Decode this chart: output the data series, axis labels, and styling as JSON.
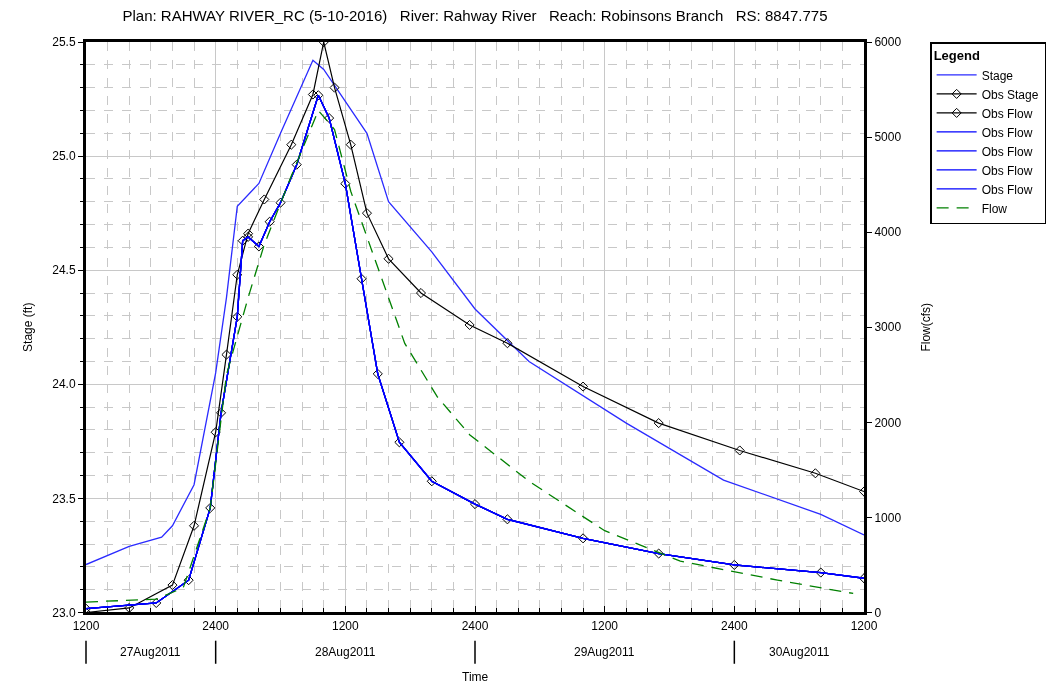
{
  "chart_data": {
    "type": "line",
    "title": "Plan: RAHWAY RIVER_RC (5-10-2016)   River: Rahway River   Reach: Robinsons Branch   RS: 8847.775",
    "xlabel": "Time",
    "ylabel": "Stage (ft)",
    "y2label": "Flow(cfs)",
    "legend_title": "Legend",
    "legend": "right",
    "grid": true,
    "xlim": [
      "2011-08-27T12:00",
      "2011-08-30T12:00"
    ],
    "xticks": [
      {
        "value": "2011-08-27T12:00",
        "label": "1200"
      },
      {
        "value": "2011-08-28T00:00",
        "label": "2400"
      },
      {
        "value": "2011-08-28T12:00",
        "label": "1200"
      },
      {
        "value": "2011-08-29T00:00",
        "label": "2400"
      },
      {
        "value": "2011-08-29T12:00",
        "label": "1200"
      },
      {
        "value": "2011-08-30T00:00",
        "label": "2400"
      },
      {
        "value": "2011-08-30T12:00",
        "label": "1200"
      }
    ],
    "x2lim": [
      "2011-08-27T12:00",
      "2011-08-30T12:00"
    ],
    "x2ticks": [
      {
        "value": "2011-08-27T12:00",
        "label": null
      },
      {
        "value": "2011-08-27T18:00",
        "label": "27Aug2011"
      },
      {
        "value": "2011-08-28T00:00",
        "label": null
      },
      {
        "value": "2011-08-28T12:00",
        "label": "28Aug2011"
      },
      {
        "value": "2011-08-29T00:00",
        "label": null
      },
      {
        "value": "2011-08-29T12:00",
        "label": "29Aug2011"
      },
      {
        "value": "2011-08-30T00:00",
        "label": null
      },
      {
        "value": "2011-08-30T06:00",
        "label": "30Aug2011"
      }
    ],
    "ylim": [
      23,
      25.5
    ],
    "yticks": [
      {
        "value": 23,
        "label": "23.0"
      },
      {
        "value": 23.5,
        "label": "23.5"
      },
      {
        "value": 24,
        "label": "24.0"
      },
      {
        "value": 24.5,
        "label": "24.5"
      },
      {
        "value": 25,
        "label": "25.0"
      },
      {
        "value": 25.5,
        "label": "25.5"
      }
    ],
    "y2lim": [
      0,
      6000
    ],
    "y2ticks": [
      0,
      1000,
      2000,
      3000,
      4000,
      5000,
      6000
    ],
    "series": [
      {
        "name": "Stage",
        "color": "#2b2bff",
        "marker": "none",
        "line_style": "solid",
        "x": [
          "2011-08-27T12:00",
          "2011-08-27T16:00",
          "2011-08-27T19:00",
          "2011-08-27T20:00",
          "2011-08-27T22:00",
          "2011-08-28T00:00",
          "2011-08-28T01:00",
          "2011-08-28T02:00",
          "2011-08-28T04:00",
          "2011-08-28T06:00",
          "2011-08-28T09:00",
          "2011-08-28T10:00",
          "2011-08-28T14:00",
          "2011-08-28T16:00",
          "2011-08-28T20:00",
          "2011-08-29T00:00",
          "2011-08-29T05:00",
          "2011-08-29T14:00",
          "2011-08-29T23:00",
          "2011-08-30T08:00",
          "2011-08-30T12:00"
        ],
        "values": [
          23.21,
          23.29,
          23.33,
          23.38,
          23.56,
          24.05,
          24.38,
          24.78,
          24.88,
          25.1,
          25.42,
          25.38,
          25.1,
          24.8,
          24.58,
          24.33,
          24.1,
          23.83,
          23.58,
          23.43,
          23.34
        ]
      },
      {
        "name": "Obs Stage",
        "color": "#000000",
        "marker": "diamond",
        "line_style": "solid",
        "x": [
          "2011-08-27T12:00",
          "2011-08-27T16:00",
          "2011-08-27T20:00",
          "2011-08-27T22:00",
          "2011-08-28T00:00",
          "2011-08-28T01:00",
          "2011-08-28T02:00",
          "2011-08-28T03:00",
          "2011-08-28T04:30",
          "2011-08-28T07:00",
          "2011-08-28T09:00",
          "2011-08-28T10:00",
          "2011-08-28T11:00",
          "2011-08-28T12:30",
          "2011-08-28T14:00",
          "2011-08-28T16:00",
          "2011-08-28T19:00",
          "2011-08-28T23:30",
          "2011-08-29T03:00",
          "2011-08-29T10:00",
          "2011-08-29T17:00",
          "2011-08-30T00:30",
          "2011-08-30T07:30",
          "2011-08-30T12:00"
        ],
        "values": [
          23.0,
          23.02,
          23.12,
          23.38,
          23.79,
          24.13,
          24.48,
          24.66,
          24.81,
          25.05,
          25.27,
          25.5,
          25.3,
          25.05,
          24.75,
          24.55,
          24.4,
          24.26,
          24.18,
          23.99,
          23.83,
          23.71,
          23.61,
          23.53
        ]
      },
      {
        "name": "Obs Flow",
        "color": "#000000",
        "marker": "diamond",
        "line_style": "solid",
        "axis": "y2",
        "x": [
          "2011-08-27T12:00",
          "2011-08-27T18:30",
          "2011-08-27T21:30",
          "2011-08-27T23:30",
          "2011-08-28T00:30",
          "2011-08-28T02:00",
          "2011-08-28T02:30",
          "2011-08-28T03:00",
          "2011-08-28T04:00",
          "2011-08-28T05:00",
          "2011-08-28T06:00",
          "2011-08-28T07:30",
          "2011-08-28T09:30",
          "2011-08-28T10:30",
          "2011-08-28T12:00",
          "2011-08-28T13:30",
          "2011-08-28T15:00",
          "2011-08-28T17:00",
          "2011-08-28T20:00",
          "2011-08-29T00:00",
          "2011-08-29T03:00",
          "2011-08-29T10:00",
          "2011-08-29T17:00",
          "2011-08-30T00:00",
          "2011-08-30T08:00",
          "2011-08-30T12:00"
        ],
        "values": [
          40,
          100,
          340,
          1100,
          2100,
          3110,
          3910,
          3950,
          3850,
          4110,
          4310,
          4710,
          5440,
          5200,
          4510,
          3510,
          2510,
          1790,
          1380,
          1140,
          980,
          780,
          620,
          500,
          420,
          360
        ]
      },
      {
        "name": "Obs Flow",
        "color": "#0000ff",
        "marker": "none",
        "line_style": "solid",
        "axis": "y2",
        "x": [
          "2011-08-27T12:00",
          "2011-08-27T18:30",
          "2011-08-27T21:30",
          "2011-08-27T23:30",
          "2011-08-28T00:30",
          "2011-08-28T02:00",
          "2011-08-28T02:30",
          "2011-08-28T03:00",
          "2011-08-28T04:00",
          "2011-08-28T05:00",
          "2011-08-28T06:00",
          "2011-08-28T07:30",
          "2011-08-28T09:30",
          "2011-08-28T10:30",
          "2011-08-28T12:00",
          "2011-08-28T13:30",
          "2011-08-28T15:00",
          "2011-08-28T17:00",
          "2011-08-28T20:00",
          "2011-08-29T00:00",
          "2011-08-29T03:00",
          "2011-08-29T10:00",
          "2011-08-29T17:00",
          "2011-08-30T00:00",
          "2011-08-30T08:00",
          "2011-08-30T12:00"
        ],
        "values": [
          40,
          100,
          340,
          1100,
          2100,
          3110,
          3910,
          3950,
          3850,
          4110,
          4310,
          4710,
          5440,
          5200,
          4510,
          3510,
          2510,
          1790,
          1380,
          1140,
          980,
          780,
          620,
          500,
          420,
          360
        ]
      },
      {
        "name": "Obs Flow",
        "color": "#0000ff",
        "marker": "none",
        "line_style": "solid",
        "axis": "y2",
        "x": [
          "2011-08-27T12:00",
          "2011-08-27T18:30",
          "2011-08-27T21:30",
          "2011-08-27T23:30",
          "2011-08-28T00:30",
          "2011-08-28T02:00",
          "2011-08-28T02:30",
          "2011-08-28T03:00",
          "2011-08-28T04:00",
          "2011-08-28T05:00",
          "2011-08-28T06:00",
          "2011-08-28T07:30",
          "2011-08-28T09:30",
          "2011-08-28T10:30",
          "2011-08-28T12:00",
          "2011-08-28T13:30",
          "2011-08-28T15:00",
          "2011-08-28T17:00",
          "2011-08-28T20:00",
          "2011-08-29T00:00",
          "2011-08-29T03:00",
          "2011-08-29T10:00",
          "2011-08-29T17:00",
          "2011-08-30T00:00",
          "2011-08-30T08:00",
          "2011-08-30T12:00"
        ],
        "values": [
          40,
          100,
          340,
          1100,
          2100,
          3110,
          3910,
          3950,
          3850,
          4110,
          4310,
          4710,
          5440,
          5200,
          4510,
          3510,
          2510,
          1790,
          1380,
          1140,
          980,
          780,
          620,
          500,
          420,
          360
        ]
      },
      {
        "name": "Obs Flow",
        "color": "#0000ff",
        "marker": "none",
        "line_style": "solid",
        "axis": "y2",
        "x": [
          "2011-08-27T12:00",
          "2011-08-27T18:30",
          "2011-08-27T21:30",
          "2011-08-27T23:30",
          "2011-08-28T00:30",
          "2011-08-28T02:00",
          "2011-08-28T02:30",
          "2011-08-28T03:00",
          "2011-08-28T04:00",
          "2011-08-28T05:00",
          "2011-08-28T06:00",
          "2011-08-28T07:30",
          "2011-08-28T09:30",
          "2011-08-28T10:30",
          "2011-08-28T12:00",
          "2011-08-28T13:30",
          "2011-08-28T15:00",
          "2011-08-28T17:00",
          "2011-08-28T20:00",
          "2011-08-29T00:00",
          "2011-08-29T03:00",
          "2011-08-29T10:00",
          "2011-08-29T17:00",
          "2011-08-30T00:00",
          "2011-08-30T08:00",
          "2011-08-30T12:00"
        ],
        "values": [
          40,
          100,
          340,
          1100,
          2100,
          3110,
          3910,
          3950,
          3850,
          4110,
          4310,
          4710,
          5440,
          5200,
          4510,
          3510,
          2510,
          1790,
          1380,
          1140,
          980,
          780,
          620,
          500,
          420,
          360
        ]
      },
      {
        "name": "Obs Flow",
        "color": "#0000ff",
        "marker": "none",
        "line_style": "solid",
        "axis": "y2",
        "x": [
          "2011-08-27T12:00",
          "2011-08-27T18:30",
          "2011-08-27T21:30",
          "2011-08-27T23:30",
          "2011-08-28T00:30",
          "2011-08-28T02:00",
          "2011-08-28T02:30",
          "2011-08-28T03:00",
          "2011-08-28T04:00",
          "2011-08-28T05:00",
          "2011-08-28T06:00",
          "2011-08-28T07:30",
          "2011-08-28T09:30",
          "2011-08-28T10:30",
          "2011-08-28T12:00",
          "2011-08-28T13:30",
          "2011-08-28T15:00",
          "2011-08-28T17:00",
          "2011-08-28T20:00",
          "2011-08-29T00:00",
          "2011-08-29T03:00",
          "2011-08-29T10:00",
          "2011-08-29T17:00",
          "2011-08-30T00:00",
          "2011-08-30T08:00",
          "2011-08-30T12:00"
        ],
        "values": [
          40,
          100,
          340,
          1100,
          2100,
          3110,
          3910,
          3950,
          3850,
          4110,
          4310,
          4710,
          5440,
          5200,
          4510,
          3510,
          2510,
          1790,
          1380,
          1140,
          980,
          780,
          620,
          500,
          420,
          360
        ]
      },
      {
        "name": "Flow",
        "color": "#008000",
        "marker": "none",
        "line_style": "dashed",
        "axis": "y2",
        "x": [
          "2011-08-27T12:00",
          "2011-08-27T18:30",
          "2011-08-27T21:00",
          "2011-08-27T23:30",
          "2011-08-28T01:00",
          "2011-08-28T03:00",
          "2011-08-28T04:30",
          "2011-08-28T07:00",
          "2011-08-28T09:30",
          "2011-08-28T11:00",
          "2011-08-28T12:30",
          "2011-08-28T15:00",
          "2011-08-28T17:30",
          "2011-08-28T20:30",
          "2011-08-28T23:30",
          "2011-08-29T05:00",
          "2011-08-29T12:00",
          "2011-08-29T19:00",
          "2011-08-30T04:00",
          "2011-08-30T11:00"
        ],
        "values": [
          110,
          140,
          260,
          1100,
          2500,
          3310,
          3870,
          4590,
          5280,
          5080,
          4430,
          3630,
          2830,
          2270,
          1870,
          1380,
          860,
          540,
          340,
          200
        ]
      }
    ]
  }
}
